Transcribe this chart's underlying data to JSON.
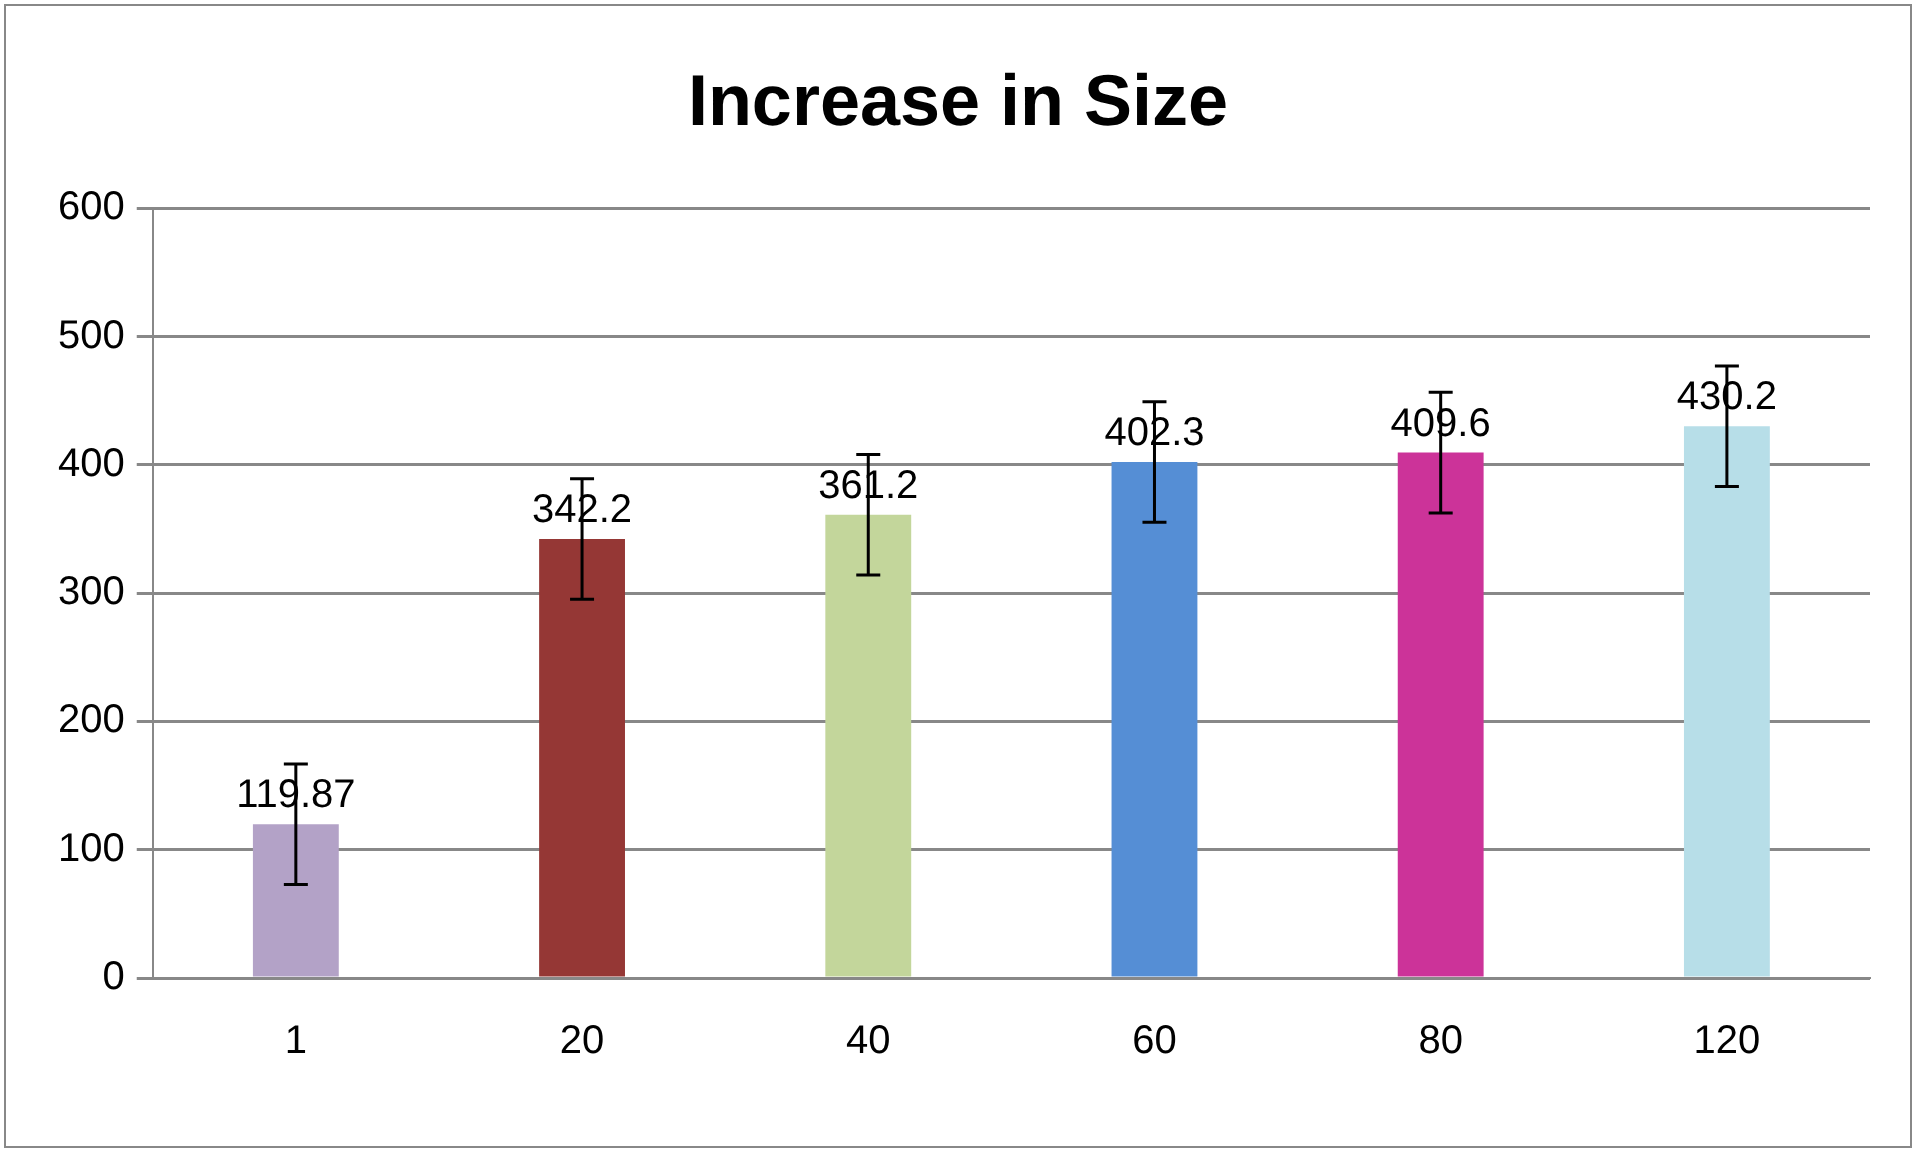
{
  "chart_data": {
    "type": "bar",
    "title": "Increase in Size",
    "categories": [
      "1",
      "20",
      "40",
      "60",
      "80",
      "120"
    ],
    "values": [
      119.87,
      342.2,
      361.2,
      402.3,
      409.6,
      430.2
    ],
    "colors": [
      "#b3a2c7",
      "#953735",
      "#c3d69b",
      "#558ed5",
      "#cc3399",
      "#b7dee8"
    ],
    "errors": [
      47,
      47,
      47,
      47,
      47,
      47
    ],
    "ylim": [
      0,
      600
    ],
    "yticks": [
      0,
      100,
      200,
      300,
      400,
      500,
      600
    ],
    "grid": "y",
    "legend": false,
    "data_labels": true
  }
}
